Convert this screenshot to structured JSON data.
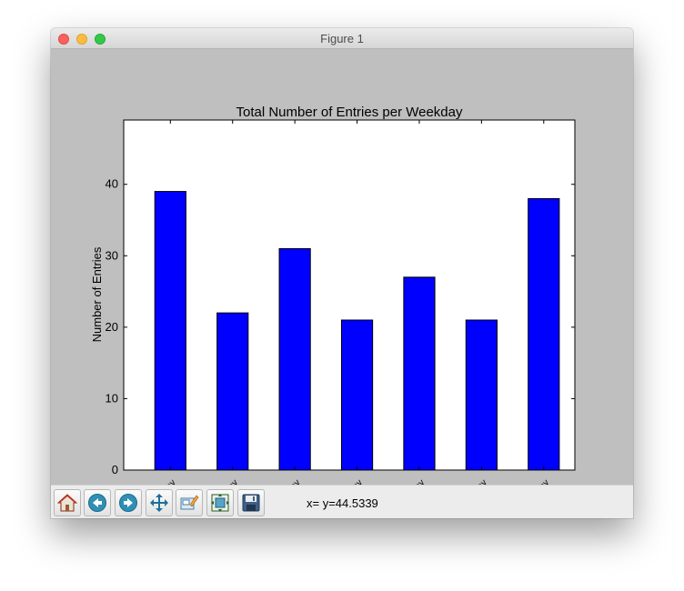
{
  "window": {
    "title": "Figure 1"
  },
  "toolbar": {
    "buttons": [
      {
        "name": "home-button",
        "icon": "home-icon"
      },
      {
        "name": "back-button",
        "icon": "back-arrow-icon"
      },
      {
        "name": "forward-button",
        "icon": "forward-arrow-icon"
      },
      {
        "name": "pan-button",
        "icon": "pan-arrows-icon"
      },
      {
        "name": "zoom-button",
        "icon": "zoom-rectangle-icon"
      },
      {
        "name": "subplots-button",
        "icon": "subplots-icon"
      },
      {
        "name": "save-button",
        "icon": "save-floppy-icon"
      }
    ],
    "coords": "x= y=44.5339"
  },
  "chart_data": {
    "type": "bar",
    "title": "Total Number of Entries per Weekday",
    "xlabel": "",
    "ylabel": "Number of Entries",
    "categories": [
      "Monday",
      "Tuesday",
      "Wednesday",
      "Thursday",
      "Friday",
      "Saturday",
      "Sunday"
    ],
    "values": [
      39,
      22,
      31,
      21,
      27,
      21,
      38
    ],
    "ylim": [
      0,
      49
    ],
    "yticks": [
      0,
      10,
      20,
      30,
      40
    ],
    "bar_color": "#0000ff",
    "edge_color": "#000000",
    "grid": false,
    "legend": "none"
  }
}
